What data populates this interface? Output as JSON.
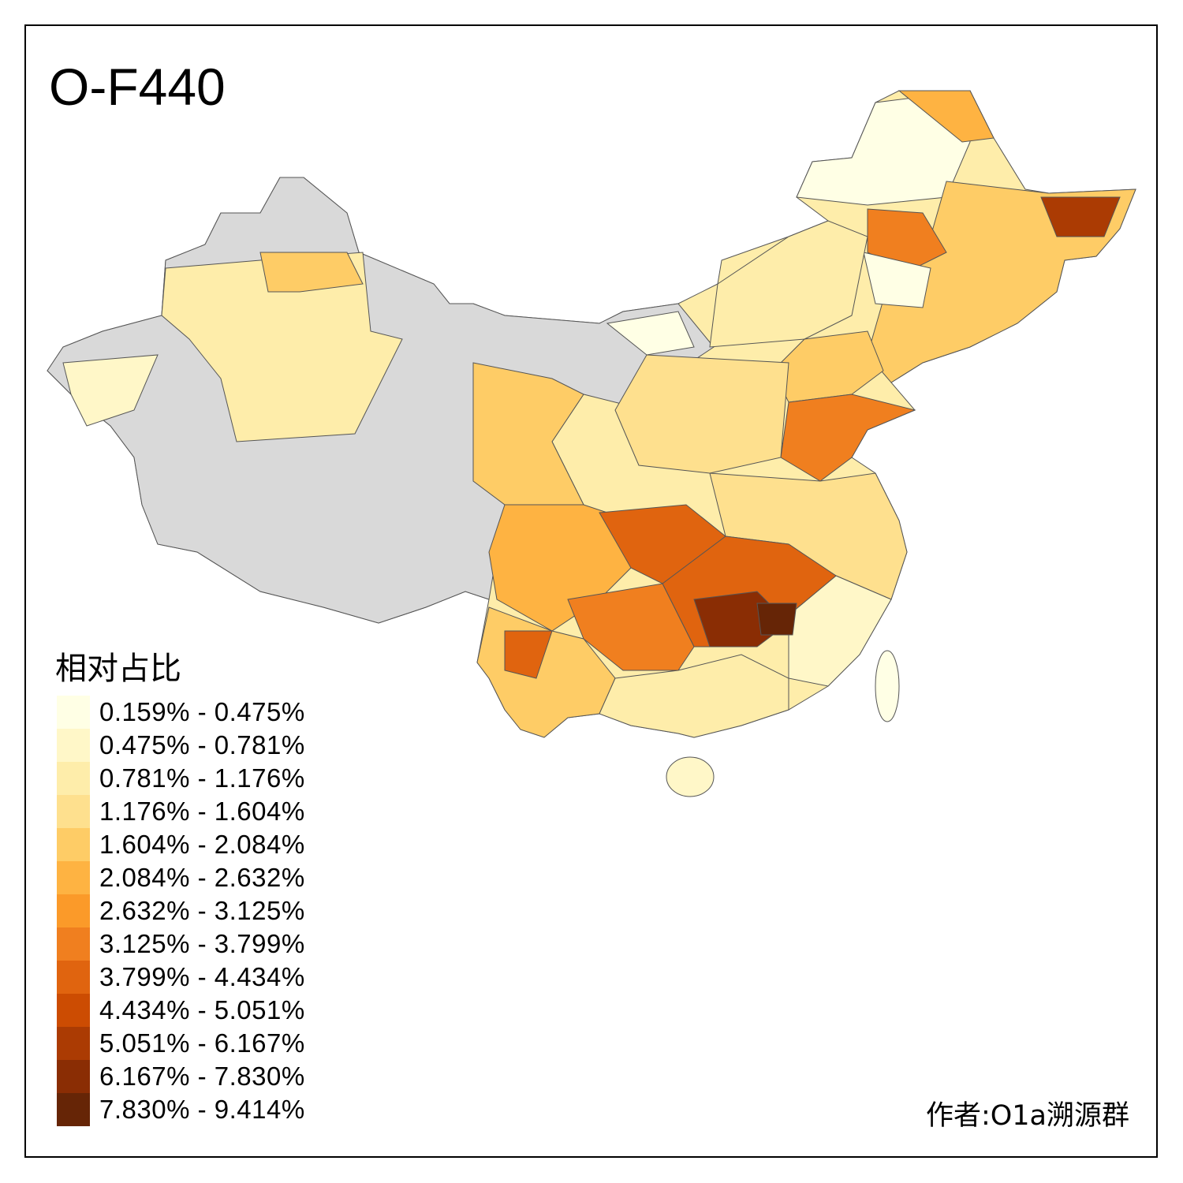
{
  "title": "O-F440",
  "legend": {
    "title": "相对占比",
    "classes": [
      {
        "label": "0.159% - 0.475%",
        "color": "#FFFFE5"
      },
      {
        "label": "0.475% - 0.781%",
        "color": "#FFF7C8"
      },
      {
        "label": "0.781% - 1.176%",
        "color": "#FEEDAA"
      },
      {
        "label": "1.176% - 1.604%",
        "color": "#FEE08E"
      },
      {
        "label": "1.604% - 2.084%",
        "color": "#FECC66"
      },
      {
        "label": "2.084% - 2.632%",
        "color": "#FEB342"
      },
      {
        "label": "2.632% - 3.125%",
        "color": "#FB9A29"
      },
      {
        "label": "3.125% - 3.799%",
        "color": "#F07F1F"
      },
      {
        "label": "3.799% - 4.434%",
        "color": "#E0640F"
      },
      {
        "label": "4.434% - 5.051%",
        "color": "#CC4C02"
      },
      {
        "label": "5.051% - 6.167%",
        "color": "#AB3B03"
      },
      {
        "label": "6.167% - 7.830%",
        "color": "#8A2D04"
      },
      {
        "label": "7.830% - 9.414%",
        "color": "#662506"
      }
    ]
  },
  "no_data_color": "#D9D9D9",
  "author": "作者:O1a溯源群"
}
